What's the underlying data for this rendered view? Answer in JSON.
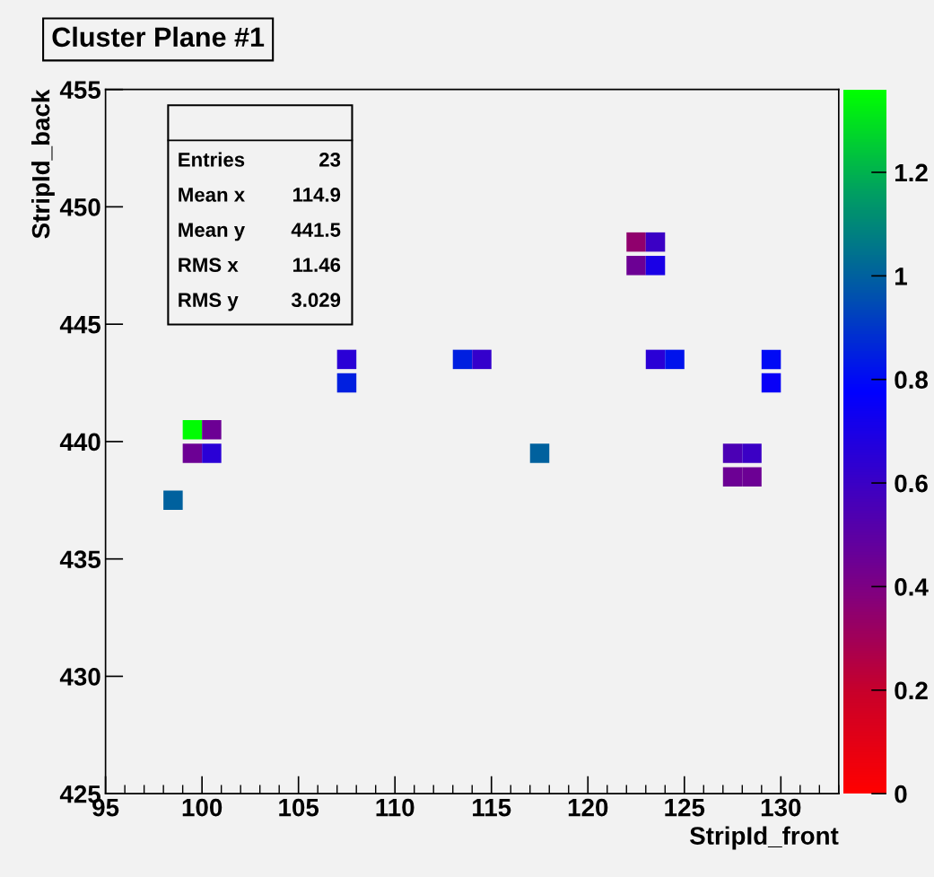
{
  "chart_data": {
    "type": "scatter",
    "title": "Cluster Plane #1",
    "xlabel": "StripId_front",
    "ylabel": "StripId_back",
    "annotations": [
      "Entries",
      "23",
      "Mean x",
      "114.9",
      "Mean y",
      "441.5",
      "RMS x",
      "11.46",
      "RMS y",
      "3.029"
    ],
    "x": [
      98.5,
      99.5,
      100.5,
      99.5,
      100.5,
      107.5,
      107.5,
      113.5,
      114.5,
      117.5,
      122.5,
      123.5,
      122.5,
      123.5,
      123.5,
      124.5,
      127.5,
      128.5,
      127.5,
      128.5,
      129.5,
      129.5
    ],
    "values": [
      437.5,
      440.5,
      440.5,
      439.5,
      439.5,
      443.5,
      442.5,
      443.5,
      443.5,
      439.5,
      448.5,
      448.5,
      447.5,
      447.5,
      443.5,
      443.5,
      439.5,
      439.5,
      438.5,
      438.5,
      443.5,
      442.5
    ],
    "cvalues": [
      1.0,
      1.35,
      0.45,
      0.45,
      0.65,
      0.65,
      0.85,
      0.85,
      0.62,
      1.0,
      0.35,
      0.6,
      0.45,
      0.7,
      0.65,
      0.82,
      0.55,
      0.6,
      0.45,
      0.45,
      0.8,
      0.75
    ],
    "marker": "square",
    "xlim": [
      95,
      133
    ],
    "xticks": [
      95,
      100,
      105,
      110,
      115,
      120,
      125,
      130
    ],
    "ylim": [
      425,
      455
    ],
    "yticks": [
      425,
      430,
      435,
      440,
      445,
      450,
      455
    ],
    "clim": [
      0,
      1.36
    ],
    "cticks": [
      0,
      0.2,
      0.4,
      0.6,
      0.8,
      1,
      1.2
    ],
    "grid": false,
    "legend": false
  }
}
